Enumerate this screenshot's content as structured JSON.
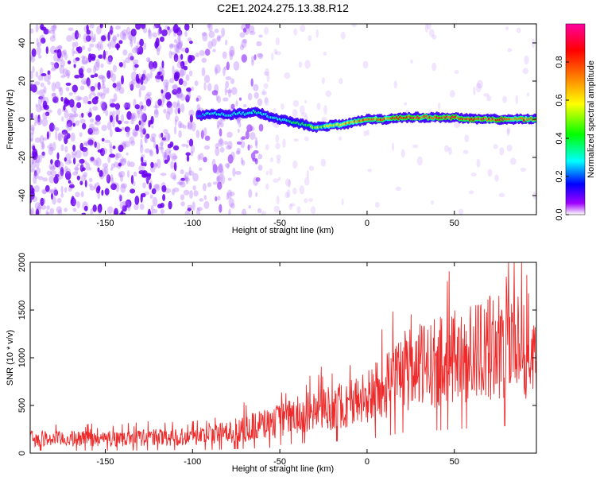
{
  "title": "C2E1.2024.275.13.38.R12",
  "chart_data": [
    {
      "type": "heatmap",
      "xlabel": "Height of straight line (km)",
      "ylabel": "Frequency (Hz)",
      "xlim": [
        -193,
        97
      ],
      "ylim": [
        -50,
        50
      ],
      "xticks": [
        -150,
        -100,
        -50,
        0,
        50
      ],
      "yticks": [
        -40,
        -20,
        0,
        20,
        40
      ],
      "colorbar": {
        "label": "Normalized spectral amplitude",
        "range": [
          0,
          1
        ],
        "ticks": [
          0.0,
          0.2,
          0.4,
          0.6,
          0.8
        ],
        "colors": [
          "#ffffff",
          "#a000ff",
          "#0000ff",
          "#00ffff",
          "#00ff00",
          "#ffff00",
          "#ff8000",
          "#ff0000",
          "#ff00a0"
        ]
      },
      "ridge": {
        "description_values": "frequency of main spectral line vs height",
        "x": [
          -95,
          -90,
          -85,
          -80,
          -75,
          -70,
          -65,
          -60,
          -55,
          -50,
          -45,
          -40,
          -35,
          -30,
          -25,
          -20,
          -15,
          -10,
          -5,
          0,
          5,
          10,
          20,
          30,
          40,
          50,
          60,
          70,
          80,
          90,
          97
        ],
        "y": [
          2,
          3,
          3,
          2,
          3,
          3,
          4,
          3,
          1,
          0,
          -1,
          -2,
          -3,
          -4,
          -4,
          -3,
          -3,
          -2,
          -1,
          0,
          0,
          0,
          1,
          1,
          1,
          1,
          0,
          0,
          0,
          0,
          0
        ],
        "amplitude": [
          0.25,
          0.3,
          0.3,
          0.3,
          0.3,
          0.3,
          0.35,
          0.3,
          0.3,
          0.3,
          0.35,
          0.4,
          0.45,
          0.5,
          0.55,
          0.6,
          0.65,
          0.7,
          0.75,
          0.8,
          0.8,
          0.8,
          0.85,
          0.9,
          0.9,
          0.9,
          0.9,
          0.9,
          0.85,
          0.85,
          0.8
        ]
      }
    },
    {
      "type": "line",
      "xlabel": "Height of straight line (km)",
      "ylabel": "SNR (10 * v/v)",
      "xlim": [
        -193,
        97
      ],
      "ylim": [
        0,
        2000
      ],
      "xticks": [
        -150,
        -100,
        -50,
        0,
        50
      ],
      "yticks": [
        0,
        500,
        1000,
        1500,
        2000
      ],
      "series": [
        {
          "color": "#ee2a2a",
          "x": [
            -190,
            -170,
            -150,
            -130,
            -110,
            -90,
            -80,
            -70,
            -60,
            -50,
            -40,
            -30,
            -20,
            -10,
            0,
            10,
            20,
            30,
            40,
            50,
            60,
            70,
            80,
            90,
            95
          ],
          "values": [
            150,
            150,
            150,
            160,
            170,
            190,
            220,
            260,
            300,
            340,
            400,
            440,
            480,
            520,
            580,
            700,
            850,
            900,
            950,
            1000,
            1050,
            1100,
            1150,
            1150,
            1100
          ]
        }
      ]
    }
  ]
}
